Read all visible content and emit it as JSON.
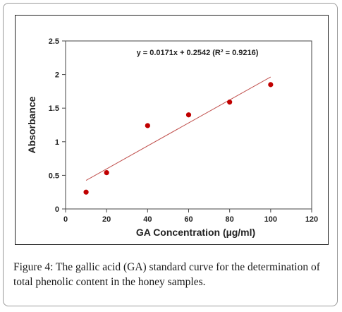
{
  "chart_data": {
    "type": "scatter",
    "title": "",
    "xlabel": "GA Concentration (µg/ml)",
    "ylabel": "Absorbance",
    "xlim": [
      0,
      120
    ],
    "ylim": [
      0,
      2.5
    ],
    "x_ticks": [
      0,
      20,
      40,
      60,
      80,
      100,
      120
    ],
    "y_ticks": [
      0,
      0.5,
      1,
      1.5,
      2,
      2.5
    ],
    "x_tick_labels": [
      "0",
      "20",
      "40",
      "60",
      "80",
      "100",
      "120"
    ],
    "y_tick_labels": [
      "0",
      "0.5",
      "1",
      "1.5",
      "2",
      "2.5"
    ],
    "grid": false,
    "legend": "none",
    "series": [
      {
        "x": [
          10,
          20,
          40,
          60,
          80,
          100
        ],
        "y": [
          0.25,
          0.54,
          1.24,
          1.4,
          1.59,
          1.85
        ],
        "color": "#c00000"
      }
    ],
    "trendline": {
      "slope": 0.0171,
      "intercept": 0.2542,
      "x_range": [
        10,
        100
      ],
      "color": "#c0504d",
      "equation_label": "y = 0.0171x + 0.2542  (R² = 0.9216)"
    }
  },
  "caption": {
    "label": "Figure 4:",
    "text": " The gallic acid (GA) standard curve for the determination of total phenolic content in the honey samples."
  }
}
